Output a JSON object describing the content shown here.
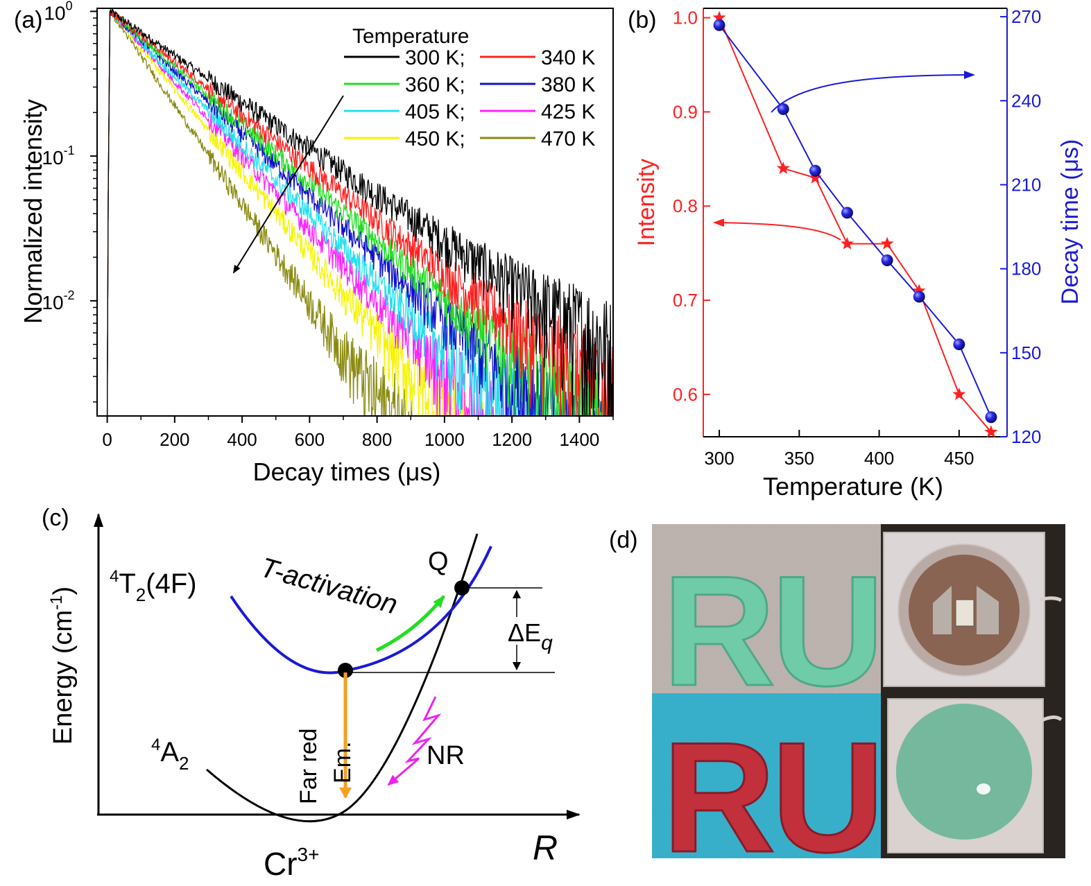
{
  "panels": {
    "a": {
      "label": "(a)",
      "legend_title": "Temperature",
      "y_ticks": [
        {
          "base": "10",
          "exp": "0",
          "value": 1
        },
        {
          "base": "10",
          "exp": "-1",
          "value": 0.1
        },
        {
          "base": "10",
          "exp": "-2",
          "value": 0.01
        }
      ]
    },
    "b": {
      "label": "(b)"
    },
    "c": {
      "label": "(c)",
      "ylabel": "Energy (cm",
      "ylabel_sup": "-1",
      "ylabel_end": ")",
      "xlabel": "R",
      "ion_base": "Cr",
      "ion_sup": "3+",
      "upper_state_sup": "4",
      "upper_state_main": "T",
      "upper_state_sub": "2",
      "upper_state_end": "(4F)",
      "ground_state_sup": "4",
      "ground_state_main": "A",
      "ground_state_sub": "2",
      "t_activation": "T-activation",
      "crossing_label": "Q",
      "delta_e": "ΔE",
      "delta_e_sub": "q",
      "emission_label1": "Far red",
      "emission_label2": "Em.",
      "nr_label": "NR",
      "colors": {
        "upper": "#1a1ad6",
        "ground": "#000000",
        "green_arrow": "#22dd22",
        "emission": "#f5a020",
        "nr": "#ee22ee"
      }
    },
    "d": {
      "label": "(d)",
      "photo_text": [
        "RU",
        "RU"
      ]
    }
  },
  "chart_data": [
    {
      "type": "line",
      "panel": "a",
      "xlabel": "Decay times (μs)",
      "ylabel": "Normalized intensity",
      "x_ticks": [
        0,
        200,
        400,
        600,
        800,
        1000,
        1200,
        1400
      ],
      "xlim": [
        -30,
        1500
      ],
      "ylim": [
        0.0016,
        1.05
      ],
      "y_scale": "log",
      "legend_title": "Temperature",
      "legend_position": "top-right",
      "grid": false,
      "series": [
        {
          "name": "300 K;",
          "color": "#000000",
          "tau": 270,
          "floor": 0.006
        },
        {
          "name": "340 K",
          "color": "#ff2020",
          "tau": 237,
          "floor": 0.0035
        },
        {
          "name": "360 K;",
          "color": "#22dd22",
          "tau": 216,
          "floor": 0.0025
        },
        {
          "name": "380 K",
          "color": "#1010cc",
          "tau": 201,
          "floor": 0.0022
        },
        {
          "name": "405 K;",
          "color": "#22e0ee",
          "tau": 183,
          "floor": 0.002
        },
        {
          "name": "425 K",
          "color": "#ff22ff",
          "tau": 170,
          "floor": 0.0018
        },
        {
          "name": "450 K;",
          "color": "#f5f500",
          "tau": 153,
          "floor": 0.0016
        },
        {
          "name": "470 K",
          "color": "#8a8a10",
          "tau": 127,
          "floor": 0.0016
        }
      ]
    },
    {
      "type": "line",
      "panel": "b",
      "xlabel": "Temperature (K)",
      "x_ticks": [
        300,
        350,
        400,
        450
      ],
      "xlim": [
        290,
        480
      ],
      "grid": false,
      "series": [
        {
          "name": "Intensity",
          "axis": "left",
          "color": "#ff2020",
          "marker": "star",
          "x": [
            300,
            340,
            360,
            380,
            405,
            425,
            450,
            470
          ],
          "values": [
            1.0,
            0.84,
            0.83,
            0.76,
            0.76,
            0.71,
            0.6,
            0.56
          ]
        },
        {
          "name": "Decay time (μs)",
          "axis": "right",
          "color": "#1a1ad6",
          "marker": "sphere",
          "x": [
            300,
            340,
            360,
            380,
            405,
            425,
            450,
            470
          ],
          "values": [
            267,
            237,
            215,
            200,
            183,
            170,
            153,
            127
          ]
        }
      ],
      "y_left": {
        "label": "Intensity",
        "ticks": [
          "0.6",
          "0.7",
          "0.8",
          "0.9",
          "1.0"
        ],
        "ylim": [
          0.555,
          1.01
        ]
      },
      "y_right": {
        "label": "Decay time (μs)",
        "ticks": [
          "120",
          "150",
          "180",
          "210",
          "240",
          "270"
        ],
        "ylim": [
          120,
          273
        ]
      }
    }
  ]
}
